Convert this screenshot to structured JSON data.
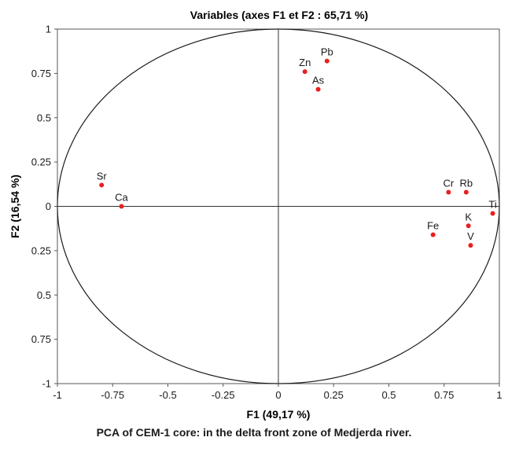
{
  "chart_data": {
    "type": "scatter",
    "title": "Variables (axes F1 et F2 : 65,71 %)",
    "xlabel": "F1 (49,17 %)",
    "ylabel": "F2 (16,54 %)",
    "xlim": [
      -1,
      1
    ],
    "ylim": [
      -1,
      1
    ],
    "x_ticks": [
      "-1",
      "-0.75",
      "-0.5",
      "-0.25",
      "0",
      "0.25",
      "0.5",
      "0.75",
      "1"
    ],
    "y_ticks": [
      "1",
      "0.75",
      "0.5",
      "0.25",
      "0",
      "0.25",
      "0.5",
      "0.75",
      "-1"
    ],
    "grid": false,
    "correlation_circle": true,
    "point_color": "#e8201f",
    "points": [
      {
        "label": "Pb",
        "x": 0.22,
        "y": 0.82
      },
      {
        "label": "Zn",
        "x": 0.12,
        "y": 0.76
      },
      {
        "label": "As",
        "x": 0.18,
        "y": 0.66
      },
      {
        "label": "Sr",
        "x": -0.8,
        "y": 0.12
      },
      {
        "label": "Ca",
        "x": -0.71,
        "y": 0.0
      },
      {
        "label": "Cr",
        "x": 0.77,
        "y": 0.08
      },
      {
        "label": "Rb",
        "x": 0.85,
        "y": 0.08
      },
      {
        "label": "Ti",
        "x": 0.97,
        "y": -0.04
      },
      {
        "label": "K",
        "x": 0.86,
        "y": -0.11
      },
      {
        "label": "Fe",
        "x": 0.7,
        "y": -0.16
      },
      {
        "label": "V",
        "x": 0.87,
        "y": -0.22
      }
    ]
  },
  "caption": "PCA of CEM-1 core: in the delta front zone of Medjerda river."
}
